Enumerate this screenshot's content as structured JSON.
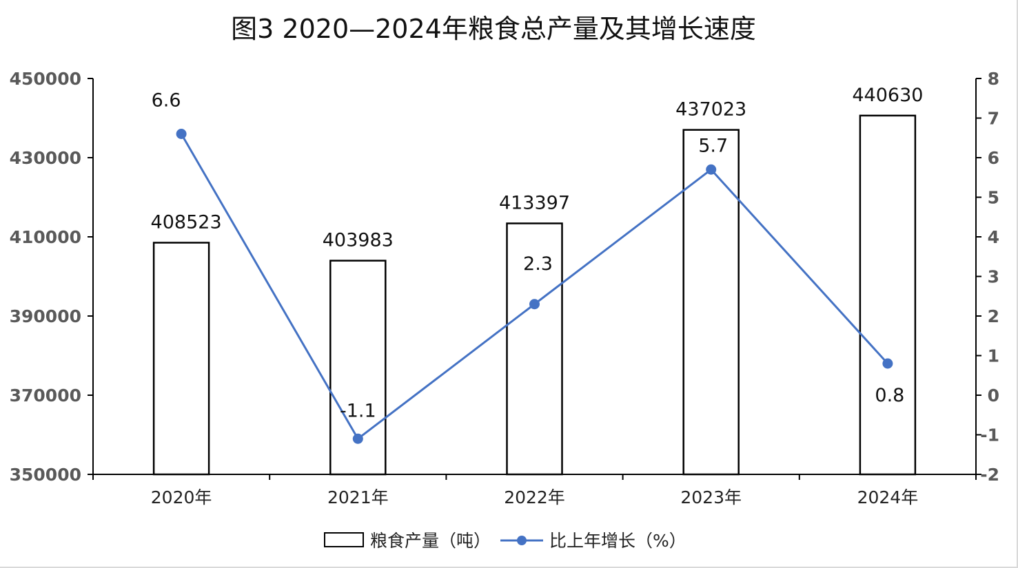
{
  "chart_data": {
    "type": "bar",
    "title": "图3   2020—2024年粮食总产量及其增长速度",
    "categories": [
      "2020年",
      "2021年",
      "2022年",
      "2023年",
      "2024年"
    ],
    "series": [
      {
        "name": "粮食产量（吨）",
        "type": "bar",
        "axis": "left",
        "values": [
          408523,
          403983,
          413397,
          437023,
          440630
        ],
        "labels": [
          "408523",
          "403983",
          "413397",
          "437023",
          "440630"
        ]
      },
      {
        "name": "比上年增长（%）",
        "type": "line",
        "axis": "right",
        "values": [
          6.6,
          -1.1,
          2.3,
          5.7,
          0.8
        ],
        "labels": [
          "6.6",
          "-1.1",
          "2.3",
          "5.7",
          "0.8"
        ],
        "color": "#4472c4"
      }
    ],
    "y_left": {
      "ylim": [
        350000,
        450000
      ],
      "ticks": [
        "350000",
        "370000",
        "390000",
        "410000",
        "430000",
        "450000"
      ]
    },
    "y_right": {
      "ylim": [
        -2,
        8
      ],
      "ticks": [
        "-2",
        "-1",
        "0",
        "1",
        "2",
        "3",
        "4",
        "5",
        "6",
        "7",
        "8"
      ]
    },
    "grid": false,
    "legend_position": "bottom"
  }
}
